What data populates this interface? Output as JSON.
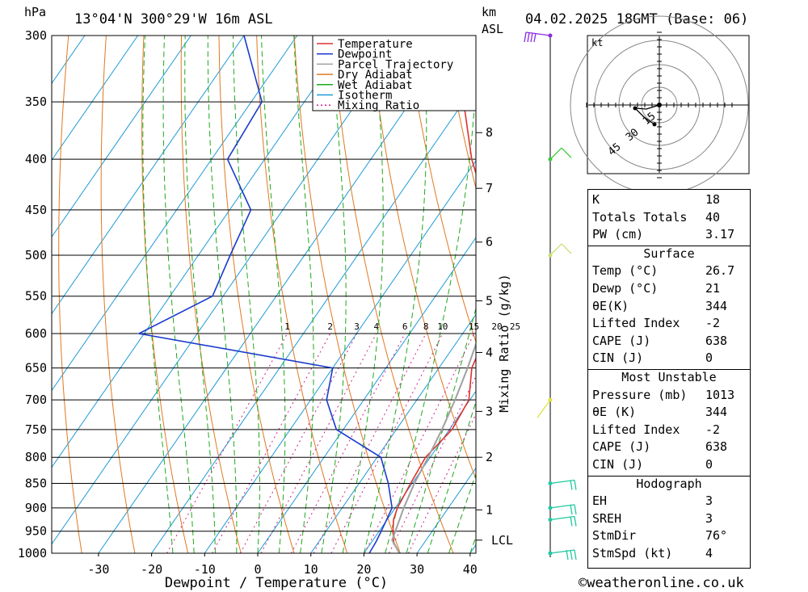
{
  "header": {
    "hpa_label": "hPa",
    "location": "13°04'N  300°29'W  16m  ASL",
    "km_label": "km",
    "asl_label": "ASL",
    "datetime": "04.02.2025  18GMT  (Base: 06)"
  },
  "footer": {
    "copyright": "©weatheronline.co.uk"
  },
  "colors": {
    "temperature": "#e03030",
    "dewpoint": "#1a3ccc",
    "parcel": "#a0a0a0",
    "dry_adiabat": "#e07820",
    "wet_adiabat": "#1ea81e",
    "isotherm": "#1e9ad6",
    "mixing_ratio": "#d0208a"
  },
  "chart_data": {
    "type": "line",
    "title": "13°04'N  300°29'W  16m  ASL",
    "xlabel": "Dewpoint / Temperature (°C)",
    "ylabel": "hPa",
    "right_axis_label": "Mixing Ratio (g/kg)",
    "pressure_levels": [
      300,
      350,
      400,
      450,
      500,
      550,
      600,
      650,
      700,
      750,
      800,
      850,
      900,
      950,
      1000
    ],
    "temperature_ticks": [
      -30,
      -20,
      -10,
      0,
      10,
      20,
      30,
      40
    ],
    "height_ticks_km": [
      {
        "label": "8",
        "p": 376
      },
      {
        "label": "7",
        "p": 428
      },
      {
        "label": "6",
        "p": 485
      },
      {
        "label": "5",
        "p": 556
      },
      {
        "label": "4",
        "p": 627
      },
      {
        "label": "3",
        "p": 719
      },
      {
        "label": "2",
        "p": 800
      },
      {
        "label": "1",
        "p": 904
      },
      {
        "label": "LCL",
        "p": 970
      }
    ],
    "mixing_ratio_labels": [
      "1",
      "2",
      "3",
      "4",
      "6",
      "8",
      "10",
      "15",
      "20",
      "25"
    ],
    "legend": [
      "Temperature",
      "Dewpoint",
      "Parcel Trajectory",
      "Dry Adiabat",
      "Wet Adiabat",
      "Isotherm",
      "Mixing Ratio"
    ],
    "legend_position": "top-right",
    "series": [
      {
        "name": "Temperature",
        "points": [
          [
            1000,
            26.7
          ],
          [
            975,
            24.2
          ],
          [
            950,
            22.6
          ],
          [
            925,
            21.2
          ],
          [
            900,
            20.4
          ],
          [
            850,
            19.7
          ],
          [
            800,
            19.1
          ],
          [
            750,
            20.5
          ],
          [
            700,
            19.8
          ],
          [
            650,
            16.2
          ],
          [
            600,
            14.5
          ],
          [
            550,
            9.5
          ],
          [
            500,
            4.7
          ],
          [
            450,
            -1.5
          ],
          [
            400,
            -11
          ],
          [
            350,
            -20
          ],
          [
            300,
            -32
          ]
        ]
      },
      {
        "name": "Dewpoint",
        "points": [
          [
            1000,
            21
          ],
          [
            975,
            20.8
          ],
          [
            950,
            20.4
          ],
          [
            900,
            19.4
          ],
          [
            850,
            15.5
          ],
          [
            800,
            10.7
          ],
          [
            750,
            -1.3
          ],
          [
            700,
            -7
          ],
          [
            650,
            -10
          ],
          [
            600,
            -51
          ],
          [
            550,
            -42
          ],
          [
            500,
            -44
          ],
          [
            450,
            -46
          ],
          [
            400,
            -57
          ],
          [
            350,
            -58
          ],
          [
            300,
            -70
          ]
        ]
      },
      {
        "name": "Parcel Trajectory",
        "points": [
          [
            1000,
            26.7
          ],
          [
            970,
            23.6
          ],
          [
            900,
            21.6
          ],
          [
            850,
            20.4
          ],
          [
            800,
            19.6
          ],
          [
            750,
            18.6
          ],
          [
            700,
            17.2
          ],
          [
            650,
            15.4
          ],
          [
            600,
            13.2
          ],
          [
            550,
            10.4
          ],
          [
            500,
            6.6
          ],
          [
            450,
            1.6
          ],
          [
            400,
            -4.8
          ],
          [
            370,
            -10
          ]
        ]
      }
    ],
    "wind_barbs": [
      {
        "p": 300,
        "speed_kt": 15,
        "color": "#8a2be2"
      },
      {
        "p": 400,
        "speed_kt": 10,
        "color": "#3cc83c"
      },
      {
        "p": 500,
        "speed_kt": 10,
        "color": "#c8e070"
      },
      {
        "p": 700,
        "speed_kt": 5,
        "color": "#e0e040"
      },
      {
        "p": 850,
        "speed_kt": 10,
        "color": "#20c8a0"
      },
      {
        "p": 900,
        "speed_kt": 10,
        "color": "#20c8a0"
      },
      {
        "p": 925,
        "speed_kt": 10,
        "color": "#20c8a0"
      },
      {
        "p": 1000,
        "speed_kt": 15,
        "color": "#20c8a0"
      }
    ],
    "hodograph": {
      "unit_label": "kt",
      "ring_labels": [
        "15",
        "30",
        "45"
      ]
    }
  },
  "indices": {
    "rows1": [
      {
        "k": "K",
        "v": "18"
      },
      {
        "k": "Totals Totals",
        "v": "40"
      },
      {
        "k": "PW (cm)",
        "v": "3.17"
      }
    ],
    "surface": {
      "title": "Surface",
      "rows": [
        {
          "k": "Temp (°C)",
          "v": "26.7"
        },
        {
          "k": "Dewp (°C)",
          "v": "21"
        },
        {
          "k": "θE(K)",
          "v": "344"
        },
        {
          "k": "Lifted Index",
          "v": "-2"
        },
        {
          "k": "CAPE (J)",
          "v": "638"
        },
        {
          "k": "CIN (J)",
          "v": "0"
        }
      ]
    },
    "most_unstable": {
      "title": "Most Unstable",
      "rows": [
        {
          "k": "Pressure (mb)",
          "v": "1013"
        },
        {
          "k": "θE (K)",
          "v": "344"
        },
        {
          "k": "Lifted Index",
          "v": "-2"
        },
        {
          "k": "CAPE (J)",
          "v": "638"
        },
        {
          "k": "CIN (J)",
          "v": "0"
        }
      ]
    },
    "hodograph": {
      "title": "Hodograph",
      "rows": [
        {
          "k": "EH",
          "v": "3"
        },
        {
          "k": "SREH",
          "v": "3"
        },
        {
          "k": "StmDir",
          "v": "76°"
        },
        {
          "k": "StmSpd (kt)",
          "v": "4"
        }
      ]
    }
  }
}
